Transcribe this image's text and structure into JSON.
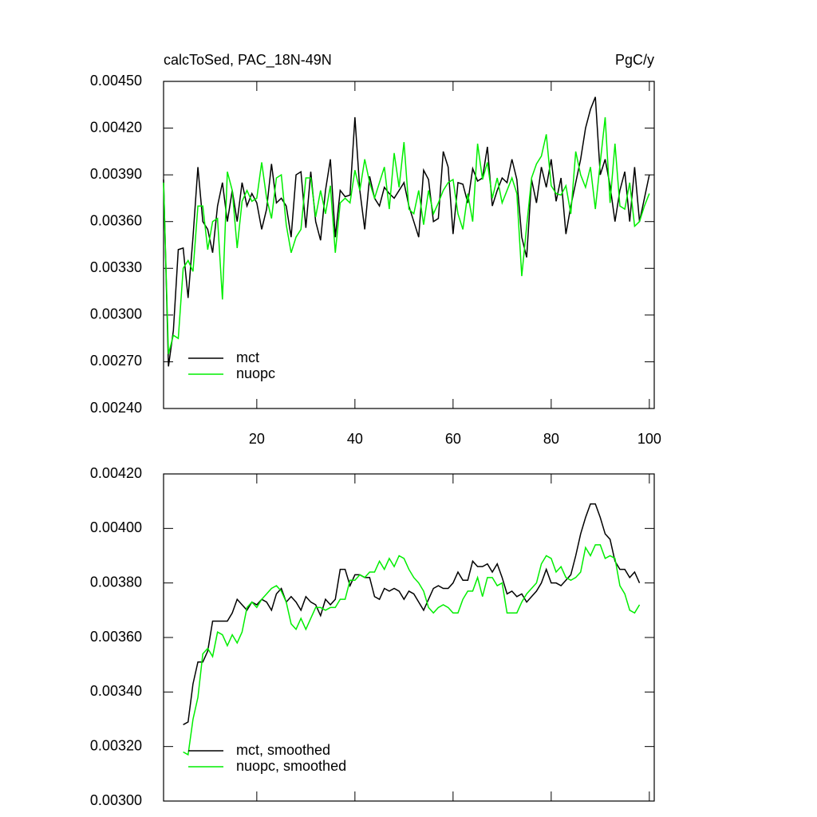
{
  "chart_data": [
    {
      "type": "line",
      "title": "calcToSed, PAC_18N-49N",
      "units": "PgC/y",
      "legend": "lower left",
      "xlim": [
        1,
        101
      ],
      "xticks": [
        20,
        40,
        60,
        80,
        100
      ],
      "show_xtick_labels": true,
      "ylim": [
        0.0024,
        0.0045
      ],
      "yticks": [
        {
          "value": 0.0024,
          "label": "0.00240"
        },
        {
          "value": 0.0027,
          "label": "0.00270"
        },
        {
          "value": 0.003,
          "label": "0.00300"
        },
        {
          "value": 0.0033,
          "label": "0.00330"
        },
        {
          "value": 0.0036,
          "label": "0.00360"
        },
        {
          "value": 0.0039,
          "label": "0.00390"
        },
        {
          "value": 0.0042,
          "label": "0.00420"
        },
        {
          "value": 0.0045,
          "label": "0.00450"
        }
      ],
      "x": [
        1,
        2,
        3,
        4,
        5,
        6,
        7,
        8,
        9,
        10,
        11,
        12,
        13,
        14,
        15,
        16,
        17,
        18,
        19,
        20,
        21,
        22,
        23,
        24,
        25,
        26,
        27,
        28,
        29,
        30,
        31,
        32,
        33,
        34,
        35,
        36,
        37,
        38,
        39,
        40,
        41,
        42,
        43,
        44,
        45,
        46,
        47,
        48,
        49,
        50,
        51,
        52,
        53,
        54,
        55,
        56,
        57,
        58,
        59,
        60,
        61,
        62,
        63,
        64,
        65,
        66,
        67,
        68,
        69,
        70,
        71,
        72,
        73,
        74,
        75,
        76,
        77,
        78,
        79,
        80,
        81,
        82,
        83,
        84,
        85,
        86,
        87,
        88,
        89,
        90,
        91,
        92,
        93,
        94,
        95,
        96,
        97,
        98,
        99,
        100
      ],
      "series": [
        {
          "name": "mct",
          "color": "#000000",
          "values": [
            0.00387,
            0.00267,
            0.0029,
            0.00342,
            0.00343,
            0.00311,
            0.0035,
            0.00395,
            0.0036,
            0.00355,
            0.0034,
            0.0037,
            0.00385,
            0.0036,
            0.0038,
            0.0036,
            0.00385,
            0.0037,
            0.00378,
            0.00372,
            0.00355,
            0.00368,
            0.00397,
            0.00372,
            0.00375,
            0.0037,
            0.0035,
            0.0039,
            0.00392,
            0.00356,
            0.00392,
            0.0036,
            0.00348,
            0.0038,
            0.004,
            0.0035,
            0.0038,
            0.00376,
            0.00377,
            0.00427,
            0.0038,
            0.00355,
            0.00389,
            0.00375,
            0.0037,
            0.00382,
            0.00378,
            0.00375,
            0.0038,
            0.00385,
            0.0037,
            0.0036,
            0.0035,
            0.00393,
            0.00387,
            0.0036,
            0.00362,
            0.00405,
            0.00395,
            0.00352,
            0.00385,
            0.00384,
            0.00372,
            0.00394,
            0.00386,
            0.00388,
            0.00408,
            0.0037,
            0.0038,
            0.00388,
            0.00385,
            0.004,
            0.00387,
            0.0035,
            0.00337,
            0.00387,
            0.00372,
            0.00395,
            0.00382,
            0.004,
            0.00373,
            0.00388,
            0.00352,
            0.0037,
            0.00385,
            0.004,
            0.0042,
            0.00432,
            0.0044,
            0.0039,
            0.004,
            0.00383,
            0.0036,
            0.0038,
            0.00392,
            0.0036,
            0.00395,
            0.0036,
            0.00375,
            0.0039
          ]
        },
        {
          "name": "nuopc",
          "color": "#00ee00",
          "values": [
            0.00385,
            0.00275,
            0.00287,
            0.00285,
            0.0033,
            0.00335,
            0.00328,
            0.0037,
            0.0037,
            0.00342,
            0.0036,
            0.00362,
            0.0031,
            0.00392,
            0.0038,
            0.00343,
            0.00373,
            0.0038,
            0.00373,
            0.00375,
            0.00398,
            0.00375,
            0.00362,
            0.00388,
            0.0039,
            0.00358,
            0.0034,
            0.0035,
            0.00355,
            0.00388,
            0.00388,
            0.00363,
            0.0038,
            0.00365,
            0.00383,
            0.0034,
            0.00372,
            0.00375,
            0.00372,
            0.00393,
            0.0038,
            0.004,
            0.00385,
            0.00375,
            0.00385,
            0.00395,
            0.00368,
            0.00404,
            0.00382,
            0.00411,
            0.00368,
            0.00365,
            0.0038,
            0.00358,
            0.0038,
            0.00365,
            0.00372,
            0.0038,
            0.00385,
            0.00387,
            0.00365,
            0.00355,
            0.00378,
            0.0036,
            0.0041,
            0.00387,
            0.00398,
            0.00375,
            0.00388,
            0.00372,
            0.0038,
            0.00388,
            0.00378,
            0.00325,
            0.00357,
            0.00388,
            0.00397,
            0.00402,
            0.00416,
            0.00383,
            0.00378,
            0.00377,
            0.00383,
            0.00365,
            0.00405,
            0.0039,
            0.00382,
            0.00395,
            0.00368,
            0.00398,
            0.00427,
            0.00372,
            0.0041,
            0.0037,
            0.00368,
            0.00385,
            0.00357,
            0.0036,
            0.0037,
            0.00378
          ]
        }
      ]
    },
    {
      "type": "line",
      "legend": "lower left",
      "xlim": [
        1,
        101
      ],
      "xticks": [
        20,
        40,
        60,
        80,
        100
      ],
      "show_xtick_labels": false,
      "ylim": [
        0.003,
        0.0042
      ],
      "yticks": [
        {
          "value": 0.003,
          "label": "0.00300"
        },
        {
          "value": 0.0032,
          "label": "0.00320"
        },
        {
          "value": 0.0034,
          "label": "0.00340"
        },
        {
          "value": 0.0036,
          "label": "0.00360"
        },
        {
          "value": 0.0038,
          "label": "0.00380"
        },
        {
          "value": 0.004,
          "label": "0.00400"
        },
        {
          "value": 0.0042,
          "label": "0.00420"
        }
      ],
      "x": [
        5,
        6,
        7,
        8,
        9,
        10,
        11,
        12,
        13,
        14,
        15,
        16,
        17,
        18,
        19,
        20,
        21,
        22,
        23,
        24,
        25,
        26,
        27,
        28,
        29,
        30,
        31,
        32,
        33,
        34,
        35,
        36,
        37,
        38,
        39,
        40,
        41,
        42,
        43,
        44,
        45,
        46,
        47,
        48,
        49,
        50,
        51,
        52,
        53,
        54,
        55,
        56,
        57,
        58,
        59,
        60,
        61,
        62,
        63,
        64,
        65,
        66,
        67,
        68,
        69,
        70,
        71,
        72,
        73,
        74,
        75,
        76,
        77,
        78,
        79,
        80,
        81,
        82,
        83,
        84,
        85,
        86,
        87,
        88,
        89,
        90,
        91,
        92,
        93,
        94,
        95,
        96,
        97,
        98
      ],
      "series": [
        {
          "name": "mct, smoothed",
          "color": "#000000",
          "values": [
            0.00328,
            0.00329,
            0.00343,
            0.00351,
            0.00351,
            0.00355,
            0.00366,
            0.00366,
            0.00366,
            0.00366,
            0.00369,
            0.00374,
            0.00372,
            0.0037,
            0.00373,
            0.00372,
            0.00374,
            0.00373,
            0.0037,
            0.00376,
            0.00378,
            0.00373,
            0.00375,
            0.00373,
            0.0037,
            0.00375,
            0.00373,
            0.00372,
            0.00368,
            0.00374,
            0.00372,
            0.00374,
            0.00385,
            0.00385,
            0.00379,
            0.00383,
            0.00383,
            0.00382,
            0.00382,
            0.00375,
            0.00374,
            0.00378,
            0.00377,
            0.00378,
            0.00377,
            0.00374,
            0.00377,
            0.00376,
            0.00373,
            0.0037,
            0.00374,
            0.00378,
            0.00379,
            0.00378,
            0.00378,
            0.0038,
            0.00384,
            0.00381,
            0.00381,
            0.00388,
            0.00386,
            0.00386,
            0.00387,
            0.00384,
            0.00387,
            0.00382,
            0.00376,
            0.00377,
            0.00375,
            0.00376,
            0.00373,
            0.00375,
            0.00377,
            0.0038,
            0.00385,
            0.0038,
            0.0038,
            0.00379,
            0.00381,
            0.00383,
            0.0039,
            0.00398,
            0.00404,
            0.00409,
            0.00409,
            0.00404,
            0.00398,
            0.00396,
            0.00388,
            0.00385,
            0.00385,
            0.00382,
            0.00384,
            0.0038
          ]
        },
        {
          "name": "nuopc, smoothed",
          "color": "#00ee00",
          "values": [
            0.00318,
            0.00317,
            0.0033,
            0.00338,
            0.00354,
            0.00356,
            0.00353,
            0.00362,
            0.00361,
            0.00357,
            0.00361,
            0.00358,
            0.00362,
            0.00371,
            0.00373,
            0.00371,
            0.00374,
            0.00376,
            0.00378,
            0.00379,
            0.00377,
            0.00373,
            0.00365,
            0.00363,
            0.00367,
            0.00363,
            0.00367,
            0.00371,
            0.00371,
            0.0037,
            0.00371,
            0.00371,
            0.00374,
            0.00374,
            0.00381,
            0.00381,
            0.00383,
            0.00382,
            0.00384,
            0.00384,
            0.00388,
            0.00385,
            0.00389,
            0.00386,
            0.0039,
            0.00389,
            0.00385,
            0.00382,
            0.0038,
            0.00377,
            0.00371,
            0.00369,
            0.00371,
            0.00372,
            0.00371,
            0.00369,
            0.00369,
            0.00374,
            0.00377,
            0.00377,
            0.00382,
            0.00375,
            0.00382,
            0.00382,
            0.00379,
            0.0038,
            0.00369,
            0.00369,
            0.00369,
            0.00373,
            0.00376,
            0.00378,
            0.0038,
            0.00387,
            0.0039,
            0.00389,
            0.00384,
            0.00386,
            0.00382,
            0.00381,
            0.00382,
            0.00384,
            0.00393,
            0.0039,
            0.00394,
            0.00394,
            0.00389,
            0.0039,
            0.00389,
            0.00379,
            0.00376,
            0.0037,
            0.00369,
            0.00372
          ]
        }
      ]
    }
  ]
}
